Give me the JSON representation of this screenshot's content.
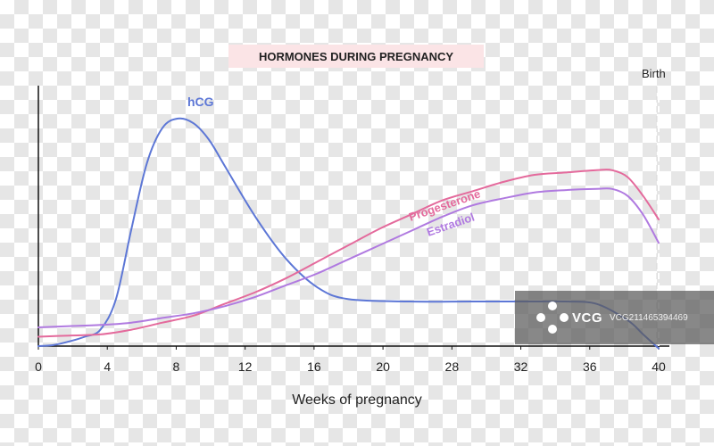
{
  "chart_data": {
    "type": "line",
    "title": "HORMONES DURING PREGNANCY",
    "xlabel": "Weeks of pregnancy",
    "ylabel": "",
    "xlim": [
      0,
      40
    ],
    "ylim": [
      0,
      100
    ],
    "x_ticks": [
      0,
      4,
      8,
      12,
      16,
      20,
      28,
      32,
      36,
      40
    ],
    "grid": false,
    "legend": "inline labels",
    "series": [
      {
        "name": "hCG",
        "color": "#5d77d6",
        "x": [
          0,
          1,
          2,
          3,
          4,
          5,
          6,
          7,
          8,
          9,
          10,
          11,
          12,
          14,
          16,
          18,
          20,
          24,
          28,
          32,
          34,
          36,
          38,
          39,
          40
        ],
        "y": [
          0,
          0.5,
          2,
          4,
          7,
          20,
          50,
          78,
          93,
          97,
          95,
          88,
          77,
          55,
          37,
          25,
          20,
          19,
          19,
          19,
          19,
          18,
          11,
          5,
          -1
        ]
      },
      {
        "name": "Progesterone",
        "color": "#e46a9c",
        "x": [
          0,
          2,
          4,
          6,
          8,
          10,
          12,
          14,
          16,
          18,
          20,
          22,
          24,
          26,
          28,
          30,
          32,
          34,
          36,
          37,
          38,
          39,
          40
        ],
        "y": [
          4,
          4.5,
          5,
          7,
          10,
          13,
          18,
          23,
          29,
          36,
          43,
          50,
          56,
          62,
          66,
          70,
          73,
          74,
          75,
          75,
          72,
          64,
          54
        ]
      },
      {
        "name": "Estradiol",
        "color": "#b07ae0",
        "x": [
          0,
          2,
          4,
          6,
          8,
          10,
          12,
          14,
          16,
          18,
          20,
          22,
          24,
          26,
          28,
          30,
          32,
          34,
          36,
          37,
          38,
          39,
          40
        ],
        "y": [
          8,
          8.5,
          9,
          10,
          12,
          14,
          17,
          21,
          26,
          31,
          37,
          43,
          49,
          55,
          60,
          63,
          65.5,
          66.5,
          67,
          67,
          64,
          56,
          44
        ]
      }
    ],
    "annotations": [
      {
        "label": "Birth",
        "x": 40,
        "style": "dashed vertical line"
      }
    ]
  },
  "watermark": {
    "brand": "VCG",
    "code": "VCG211465394469"
  }
}
